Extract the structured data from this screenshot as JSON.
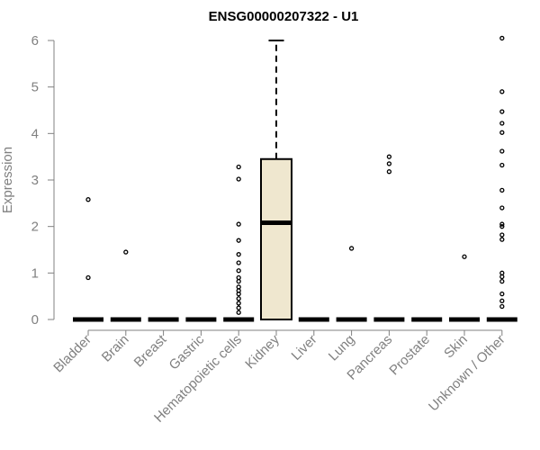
{
  "chart_data": {
    "type": "boxplot",
    "title": "ENSG00000207322 - U1",
    "xlabel": "",
    "ylabel": "Expression",
    "ylim": [
      0,
      6
    ],
    "y_ticks": [
      0,
      1,
      2,
      3,
      4,
      5,
      6
    ],
    "grid": false,
    "legend": "none",
    "colors": {
      "box_fill": "#efe7cf",
      "box_stroke": "#000000",
      "axis": "#808080",
      "text": "#808080",
      "title": "#000000"
    },
    "categories": [
      "Bladder",
      "Brain",
      "Breast",
      "Gastric",
      "Hematopoietic cells",
      "Kidney",
      "Liver",
      "Lung",
      "Pancreas",
      "Prostate",
      "Skin",
      "Unknown / Other"
    ],
    "boxes": [
      {
        "category": "Bladder",
        "min": 0,
        "q1": 0,
        "median": 0,
        "q3": 0,
        "max": 0,
        "outliers": [
          0.9,
          2.58
        ]
      },
      {
        "category": "Brain",
        "min": 0,
        "q1": 0,
        "median": 0,
        "q3": 0,
        "max": 0,
        "outliers": [
          1.45
        ]
      },
      {
        "category": "Breast",
        "min": 0,
        "q1": 0,
        "median": 0,
        "q3": 0,
        "max": 0,
        "outliers": []
      },
      {
        "category": "Gastric",
        "min": 0,
        "q1": 0,
        "median": 0,
        "q3": 0,
        "max": 0,
        "outliers": []
      },
      {
        "category": "Hematopoietic cells",
        "min": 0,
        "q1": 0,
        "median": 0,
        "q3": 0,
        "max": 0,
        "outliers": [
          0.15,
          0.25,
          0.35,
          0.45,
          0.55,
          0.62,
          0.7,
          0.82,
          0.9,
          1.05,
          1.22,
          1.4,
          1.7,
          2.05,
          3.02,
          3.28
        ]
      },
      {
        "category": "Kidney",
        "min": 0,
        "q1": 0,
        "median": 2.08,
        "q3": 3.45,
        "max": 6.0,
        "outliers": []
      },
      {
        "category": "Liver",
        "min": 0,
        "q1": 0,
        "median": 0,
        "q3": 0,
        "max": 0,
        "outliers": []
      },
      {
        "category": "Lung",
        "min": 0,
        "q1": 0,
        "median": 0,
        "q3": 0,
        "max": 0,
        "outliers": [
          1.53
        ]
      },
      {
        "category": "Pancreas",
        "min": 0,
        "q1": 0,
        "median": 0,
        "q3": 0,
        "max": 0,
        "outliers": [
          3.18,
          3.35,
          3.5
        ]
      },
      {
        "category": "Prostate",
        "min": 0,
        "q1": 0,
        "median": 0,
        "q3": 0,
        "max": 0,
        "outliers": []
      },
      {
        "category": "Skin",
        "min": 0,
        "q1": 0,
        "median": 0,
        "q3": 0,
        "max": 0,
        "outliers": [
          1.35
        ]
      },
      {
        "category": "Unknown / Other",
        "min": 0,
        "q1": 0,
        "median": 0,
        "q3": 0,
        "max": 0,
        "outliers": [
          0.28,
          0.4,
          0.55,
          0.82,
          0.92,
          1.0,
          1.72,
          1.82,
          2.0,
          2.05,
          2.4,
          2.78,
          3.32,
          3.62,
          4.02,
          4.22,
          4.47,
          4.9,
          6.05
        ]
      }
    ]
  }
}
